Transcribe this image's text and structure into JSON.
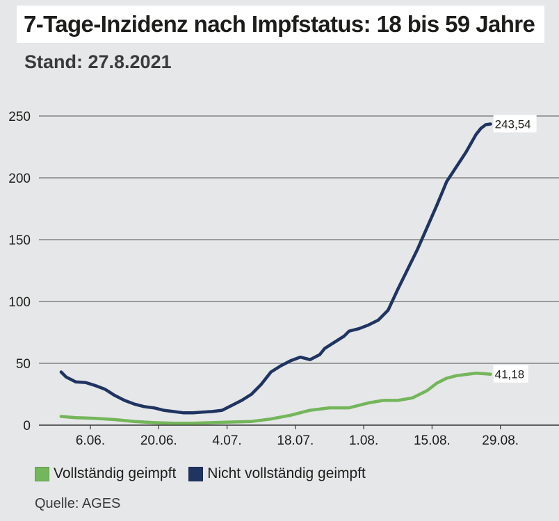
{
  "header": {
    "title": "7-Tage-Inzidenz nach Impfstatus: 18 bis 59 Jahre",
    "subtitle": "Stand: 27.8.2021"
  },
  "legend": {
    "vaccinated": "Vollständig geimpft",
    "not_vaccinated": "Nicht vollständig geimpft"
  },
  "source": "Quelle: AGES",
  "colors": {
    "vaccinated": "#74b65b",
    "not_vaccinated": "#1f3461",
    "grid": "#6f6f6f",
    "background": "#e6e7e8"
  },
  "chart_data": {
    "type": "line",
    "title": "7-Tage-Inzidenz nach Impfstatus: 18 bis 59 Jahre",
    "subtitle": "Stand: 27.8.2021",
    "xlabel": "",
    "ylabel": "",
    "ylim": [
      0,
      250
    ],
    "yticks": [
      0,
      50,
      100,
      150,
      200,
      250
    ],
    "xticks": [
      "6.06.",
      "20.06.",
      "4.07.",
      "18.07.",
      "1.08.",
      "15.08.",
      "29.08."
    ],
    "x_range": [
      "2021-05-30",
      "2021-08-29"
    ],
    "grid": true,
    "legend_position": "bottom-left",
    "series": [
      {
        "name": "Nicht vollständig geimpft",
        "end_label": "243,54",
        "x": [
          "2021-05-31",
          "2021-06-01",
          "2021-06-03",
          "2021-06-05",
          "2021-06-07",
          "2021-06-09",
          "2021-06-11",
          "2021-06-13",
          "2021-06-15",
          "2021-06-17",
          "2021-06-19",
          "2021-06-21",
          "2021-06-23",
          "2021-06-25",
          "2021-06-27",
          "2021-06-29",
          "2021-07-01",
          "2021-07-03",
          "2021-07-05",
          "2021-07-07",
          "2021-07-09",
          "2021-07-11",
          "2021-07-13",
          "2021-07-15",
          "2021-07-17",
          "2021-07-19",
          "2021-07-21",
          "2021-07-23",
          "2021-07-24",
          "2021-07-26",
          "2021-07-28",
          "2021-07-29",
          "2021-07-31",
          "2021-08-02",
          "2021-08-04",
          "2021-08-06",
          "2021-08-08",
          "2021-08-10",
          "2021-08-12",
          "2021-08-14",
          "2021-08-16",
          "2021-08-18",
          "2021-08-20",
          "2021-08-22",
          "2021-08-24",
          "2021-08-25",
          "2021-08-26",
          "2021-08-27"
        ],
        "values": [
          43,
          39,
          35,
          34.5,
          32,
          29,
          24,
          20,
          17,
          15,
          14,
          12,
          11,
          10,
          10,
          10.5,
          11,
          12,
          16,
          20,
          25,
          33,
          43,
          48,
          52,
          55,
          53,
          57,
          62,
          67,
          72,
          76,
          78,
          81,
          85,
          93,
          110,
          126,
          142,
          160,
          178,
          197,
          209,
          221,
          235,
          240,
          243,
          243.54
        ]
      },
      {
        "name": "Vollständig geimpft",
        "end_label": "41,18",
        "x": [
          "2021-05-31",
          "2021-06-03",
          "2021-06-07",
          "2021-06-11",
          "2021-06-15",
          "2021-06-19",
          "2021-06-23",
          "2021-06-27",
          "2021-07-01",
          "2021-07-05",
          "2021-07-09",
          "2021-07-13",
          "2021-07-17",
          "2021-07-21",
          "2021-07-25",
          "2021-07-29",
          "2021-08-02",
          "2021-08-05",
          "2021-08-08",
          "2021-08-11",
          "2021-08-14",
          "2021-08-16",
          "2021-08-18",
          "2021-08-20",
          "2021-08-22",
          "2021-08-24",
          "2021-08-26",
          "2021-08-27"
        ],
        "values": [
          7,
          6,
          5.5,
          4.5,
          3,
          2,
          1.5,
          1.5,
          2,
          2.5,
          3,
          5,
          8,
          12,
          14,
          14,
          18,
          20,
          20,
          22,
          28,
          34,
          38,
          40,
          41,
          42,
          41.5,
          41.18
        ]
      }
    ]
  }
}
